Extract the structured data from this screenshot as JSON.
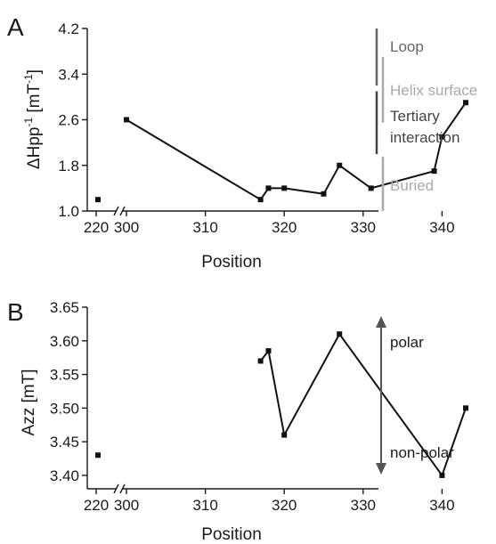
{
  "chart_data": [
    {
      "type": "line",
      "panel_label": "A",
      "xlabel": "Position",
      "ylabel_main": "ΔHpp",
      "ylabel_sup1": "-1",
      "ylabel_mid": " [mT",
      "ylabel_sup2": "-1",
      "ylabel_end": "]",
      "y_ticks": [
        "1.0",
        "1.8",
        "2.6",
        "3.4",
        "4.2"
      ],
      "x_ticks": [
        "220",
        "300",
        "310",
        "320",
        "330",
        "340"
      ],
      "ylim": [
        1.0,
        4.2
      ],
      "x_broken_axis": [
        220,
        300
      ],
      "points": [
        {
          "x": 222,
          "y": 1.2
        },
        {
          "x": 300,
          "y": 2.6
        },
        {
          "x": 317,
          "y": 1.2
        },
        {
          "x": 318,
          "y": 1.4
        },
        {
          "x": 320,
          "y": 1.4
        },
        {
          "x": 325,
          "y": 1.3
        },
        {
          "x": 327,
          "y": 1.8
        },
        {
          "x": 331,
          "y": 1.4
        },
        {
          "x": 339,
          "y": 1.7
        },
        {
          "x": 340,
          "y": 2.3
        },
        {
          "x": 343,
          "y": 2.9
        }
      ],
      "line_from_index": 1,
      "regions": [
        {
          "label": "Loop",
          "from": 3.2,
          "to": 4.2,
          "color": "#666666"
        },
        {
          "label": "Helix surface",
          "from": 2.55,
          "to": 3.7,
          "color": "#aaaaaa"
        },
        {
          "label": "Tertiary",
          "label2": "interaction",
          "from": 2.0,
          "to": 3.1,
          "color": "#444444"
        },
        {
          "label": "Buried",
          "from": 1.0,
          "to": 1.95,
          "color": "#aaaaaa"
        }
      ]
    },
    {
      "type": "line",
      "panel_label": "B",
      "xlabel": "Position",
      "ylabel": "Azz [mT]",
      "y_ticks": [
        "3.40",
        "3.45",
        "3.50",
        "3.55",
        "3.60",
        "3.65"
      ],
      "x_ticks": [
        "220",
        "300",
        "310",
        "320",
        "330",
        "340"
      ],
      "ylim": [
        3.38,
        3.65
      ],
      "x_broken_axis": [
        220,
        300
      ],
      "points": [
        {
          "x": 222,
          "y": 3.43
        },
        {
          "x": 317,
          "y": 3.57
        },
        {
          "x": 318,
          "y": 3.585
        },
        {
          "x": 320,
          "y": 3.46
        },
        {
          "x": 327,
          "y": 3.61
        },
        {
          "x": 340,
          "y": 3.4
        },
        {
          "x": 343,
          "y": 3.5
        }
      ],
      "line_from_index": 1,
      "arrow_labels": {
        "top": "polar",
        "bottom": "non-polar"
      }
    }
  ]
}
